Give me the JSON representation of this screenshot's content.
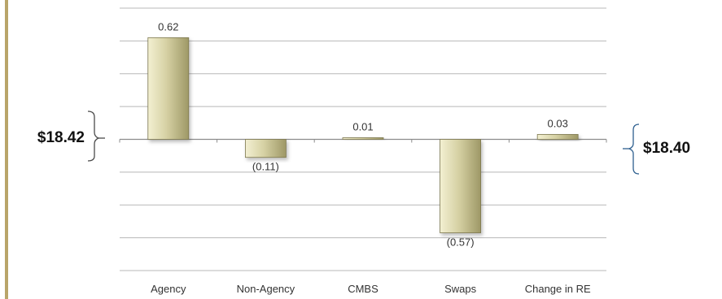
{
  "chart_data": {
    "type": "bar",
    "subtype": "waterfall-deltas",
    "categories": [
      "Agency",
      "Non-Agency",
      "CMBS",
      "Swaps",
      "Change in RE"
    ],
    "values": [
      0.62,
      -0.11,
      0.01,
      -0.57,
      0.03
    ],
    "value_labels": [
      "0.62",
      "(0.11)",
      "0.01",
      "(0.57)",
      "0.03"
    ],
    "start_value_label": "$18.42",
    "end_value_label": "$18.40",
    "ylim": [
      -0.8,
      0.8
    ],
    "grid": true,
    "title": "",
    "xlabel": "",
    "ylabel": "",
    "colors": {
      "bar_light": "#f3f0d2",
      "bar_mid": "#d6d1a4",
      "bar_dark": "#9e9866",
      "bar_edge": "#7d7850",
      "grid": "#b8b8b8",
      "axis": "#8c8c8c",
      "brace": "#4a4a4a",
      "side_rule": "#b9a56a"
    }
  }
}
